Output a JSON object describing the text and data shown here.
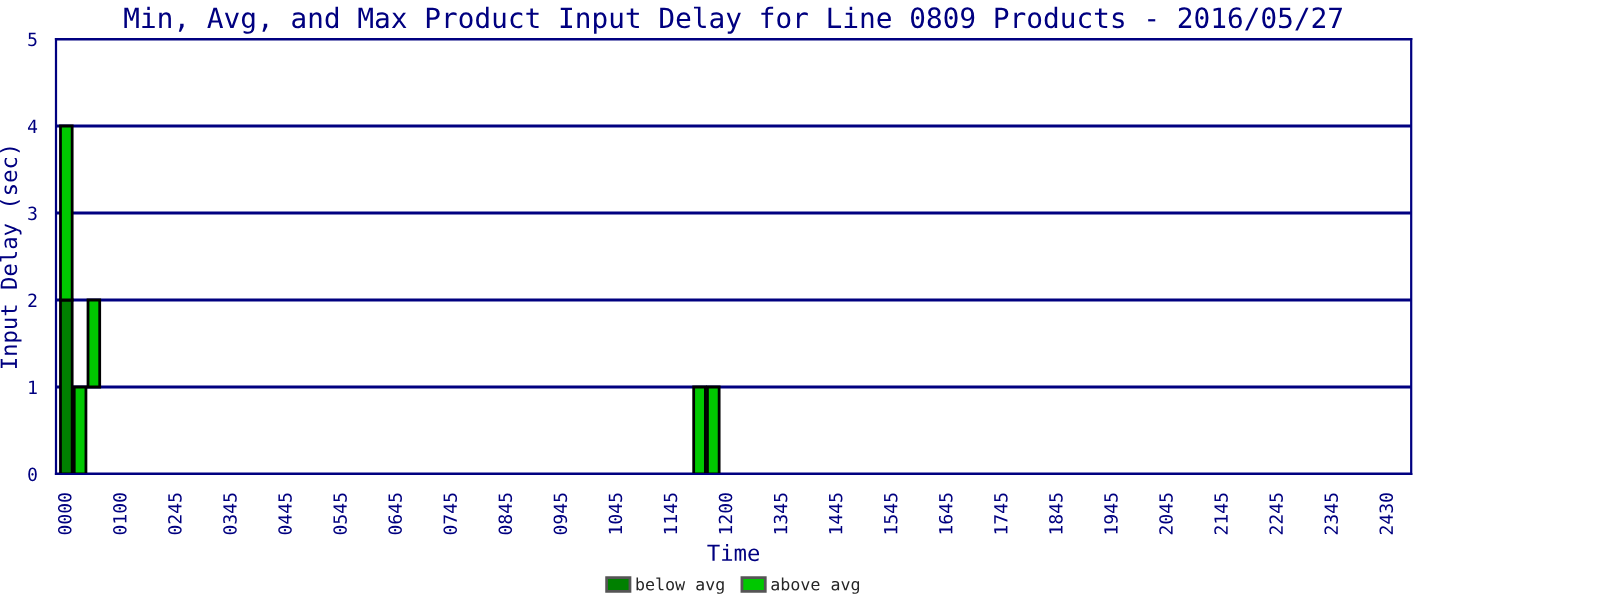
{
  "chart_data": {
    "type": "bar",
    "title": "Min, Avg, and Max Product Input Delay for Line 0809 Products - 2016/05/27",
    "xlabel": "Time",
    "ylabel": "Input Delay (sec)",
    "categories": [
      "0000",
      null,
      null,
      null,
      "0100",
      null,
      null,
      null,
      "0245",
      null,
      null,
      null,
      "0345",
      null,
      null,
      null,
      "0445",
      null,
      null,
      null,
      "0545",
      null,
      null,
      null,
      "0645",
      null,
      null,
      null,
      "0745",
      null,
      null,
      null,
      "0845",
      null,
      null,
      null,
      "0945",
      null,
      null,
      null,
      "1045",
      null,
      null,
      null,
      "1145",
      null,
      null,
      null,
      "1200",
      null,
      null,
      null,
      "1345",
      null,
      null,
      null,
      "1445",
      null,
      null,
      null,
      "1545",
      null,
      null,
      null,
      "1645",
      null,
      null,
      null,
      "1745",
      null,
      null,
      null,
      "1845",
      null,
      null,
      null,
      "1945",
      null,
      null,
      null,
      "2045",
      null,
      null,
      null,
      "2145",
      null,
      null,
      null,
      "2245",
      null,
      null,
      null,
      "2345",
      null,
      null,
      null,
      "2430"
    ],
    "series": [
      {
        "name": "below avg",
        "color": "#008000",
        "base": [
          0,
          null,
          null,
          null,
          null,
          null,
          null,
          null,
          null,
          null,
          null,
          null,
          null,
          null,
          null,
          null,
          null,
          null,
          null,
          null,
          null,
          null,
          null,
          null,
          null,
          null,
          null,
          null,
          null,
          null,
          null,
          null,
          null,
          null,
          null,
          null,
          null,
          null,
          null,
          null,
          null,
          null,
          null,
          null,
          null,
          null,
          null,
          null,
          null,
          null,
          null,
          null,
          null,
          null,
          null,
          null,
          null,
          null,
          null,
          null,
          null,
          null,
          null,
          null,
          null,
          null,
          null,
          null,
          null,
          null,
          null,
          null,
          null,
          null,
          null,
          null,
          null,
          null,
          null,
          null,
          null,
          null,
          null,
          null,
          null,
          null,
          null,
          null,
          null,
          null,
          null,
          null,
          null,
          null,
          null,
          null,
          null
        ],
        "values": [
          2,
          null,
          null,
          null,
          null,
          null,
          null,
          null,
          null,
          null,
          null,
          null,
          null,
          null,
          null,
          null,
          null,
          null,
          null,
          null,
          null,
          null,
          null,
          null,
          null,
          null,
          null,
          null,
          null,
          null,
          null,
          null,
          null,
          null,
          null,
          null,
          null,
          null,
          null,
          null,
          null,
          null,
          null,
          null,
          null,
          null,
          null,
          null,
          null,
          null,
          null,
          null,
          null,
          null,
          null,
          null,
          null,
          null,
          null,
          null,
          null,
          null,
          null,
          null,
          null,
          null,
          null,
          null,
          null,
          null,
          null,
          null,
          null,
          null,
          null,
          null,
          null,
          null,
          null,
          null,
          null,
          null,
          null,
          null,
          null,
          null,
          null,
          null,
          null,
          null,
          null,
          null,
          null,
          null,
          null,
          null,
          null
        ]
      },
      {
        "name": "above avg",
        "color": "#00c800",
        "base": [
          2,
          0,
          1,
          null,
          null,
          null,
          null,
          null,
          null,
          null,
          null,
          null,
          null,
          null,
          null,
          null,
          null,
          null,
          null,
          null,
          null,
          null,
          null,
          null,
          null,
          null,
          null,
          null,
          null,
          null,
          null,
          null,
          null,
          null,
          null,
          null,
          null,
          null,
          null,
          null,
          null,
          null,
          null,
          null,
          null,
          null,
          0,
          0,
          null,
          null,
          null,
          null,
          null,
          null,
          null,
          null,
          null,
          null,
          null,
          null,
          null,
          null,
          null,
          null,
          null,
          null,
          null,
          null,
          null,
          null,
          null,
          null,
          null,
          null,
          null,
          null,
          null,
          null,
          null,
          null,
          null,
          null,
          null,
          null,
          null,
          null,
          null,
          null,
          null,
          null,
          null,
          null,
          null,
          null,
          null,
          null,
          null
        ],
        "values": [
          2,
          1,
          1,
          null,
          null,
          null,
          null,
          null,
          null,
          null,
          null,
          null,
          null,
          null,
          null,
          null,
          null,
          null,
          null,
          null,
          null,
          null,
          null,
          null,
          null,
          null,
          null,
          null,
          null,
          null,
          null,
          null,
          null,
          null,
          null,
          null,
          null,
          null,
          null,
          null,
          null,
          null,
          null,
          null,
          null,
          null,
          1,
          1,
          null,
          null,
          null,
          null,
          null,
          null,
          null,
          null,
          null,
          null,
          null,
          null,
          null,
          null,
          null,
          null,
          null,
          null,
          null,
          null,
          null,
          null,
          null,
          null,
          null,
          null,
          null,
          null,
          null,
          null,
          null,
          null,
          null,
          null,
          null,
          null,
          null,
          null,
          null,
          null,
          null,
          null,
          null,
          null,
          null,
          null,
          null,
          null,
          null
        ]
      }
    ],
    "ylim": [
      0,
      5
    ],
    "yticks": [
      0,
      1,
      2,
      3,
      4,
      5
    ],
    "grid": "y",
    "legend": "bottom"
  }
}
